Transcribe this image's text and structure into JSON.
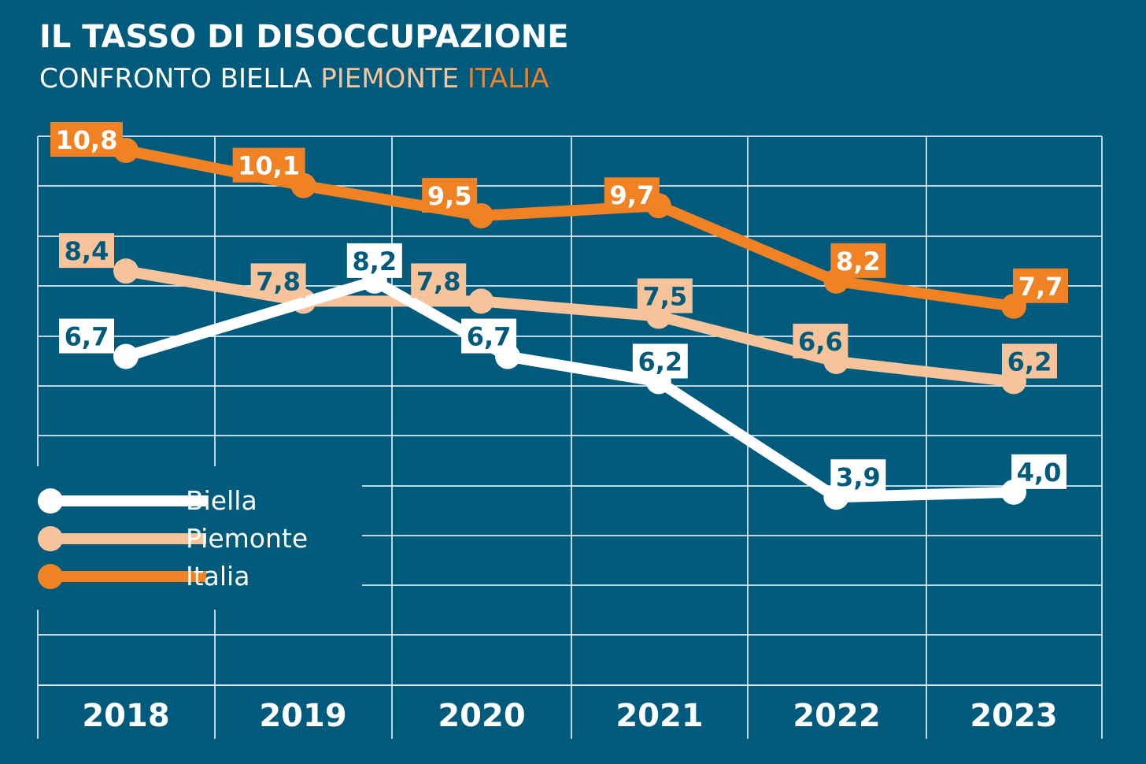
{
  "header": {
    "title": "IL TASSO DI DISOCCUPAZIONE",
    "subtitle_prefix": "CONFRONTO BIELLA ",
    "subtitle_piemonte": "PIEMONTE",
    "subtitle_italia": " ITALIA"
  },
  "legend": [
    {
      "label": "Biella"
    },
    {
      "label": "Piemonte"
    },
    {
      "label": "Italia"
    }
  ],
  "colors": {
    "background": "#005a7c",
    "biella": "#ffffff",
    "piemonte": "#f6c39a",
    "italia": "#f08224",
    "label_text_dark": "#005a7c",
    "grid": "#ffffff"
  },
  "chart_data": {
    "type": "line",
    "categories": [
      "2018",
      "2019",
      "2020",
      "2021",
      "2022",
      "2023"
    ],
    "grid": true,
    "legend_position": "bottom-left",
    "series": [
      {
        "name": "Biella",
        "color": "#ffffff",
        "points": [
          {
            "x": 2018,
            "y": 6.7,
            "label": "6,7"
          },
          {
            "x": 2019.4,
            "y": 8.2,
            "label": "8,2"
          },
          {
            "x": 2020.15,
            "y": 6.7,
            "label": "6,7"
          },
          {
            "x": 2021.0,
            "y": 6.2,
            "label": "6,2"
          },
          {
            "x": 2022.0,
            "y": 3.9,
            "label": "3,9"
          },
          {
            "x": 2023.0,
            "y": 4.0,
            "label": "4,0"
          }
        ]
      },
      {
        "name": "Piemonte",
        "color": "#f6c39a",
        "points": [
          {
            "x": 2018,
            "y": 8.4,
            "label": "8,4"
          },
          {
            "x": 2019,
            "y": 7.8,
            "label": "7,8"
          },
          {
            "x": 2020,
            "y": 7.8,
            "label": "7,8"
          },
          {
            "x": 2021,
            "y": 7.5,
            "label": "7,5"
          },
          {
            "x": 2022,
            "y": 6.6,
            "label": "6,6"
          },
          {
            "x": 2023,
            "y": 6.2,
            "label": "6,2"
          }
        ]
      },
      {
        "name": "Italia",
        "color": "#f08224",
        "points": [
          {
            "x": 2018,
            "y": 10.8,
            "label": "10,8"
          },
          {
            "x": 2019,
            "y": 10.1,
            "label": "10,1"
          },
          {
            "x": 2020,
            "y": 9.5,
            "label": "9,5"
          },
          {
            "x": 2021,
            "y": 9.7,
            "label": "9,7"
          },
          {
            "x": 2022,
            "y": 8.2,
            "label": "8,2"
          },
          {
            "x": 2023,
            "y": 7.7,
            "label": "7,7"
          }
        ]
      }
    ]
  }
}
